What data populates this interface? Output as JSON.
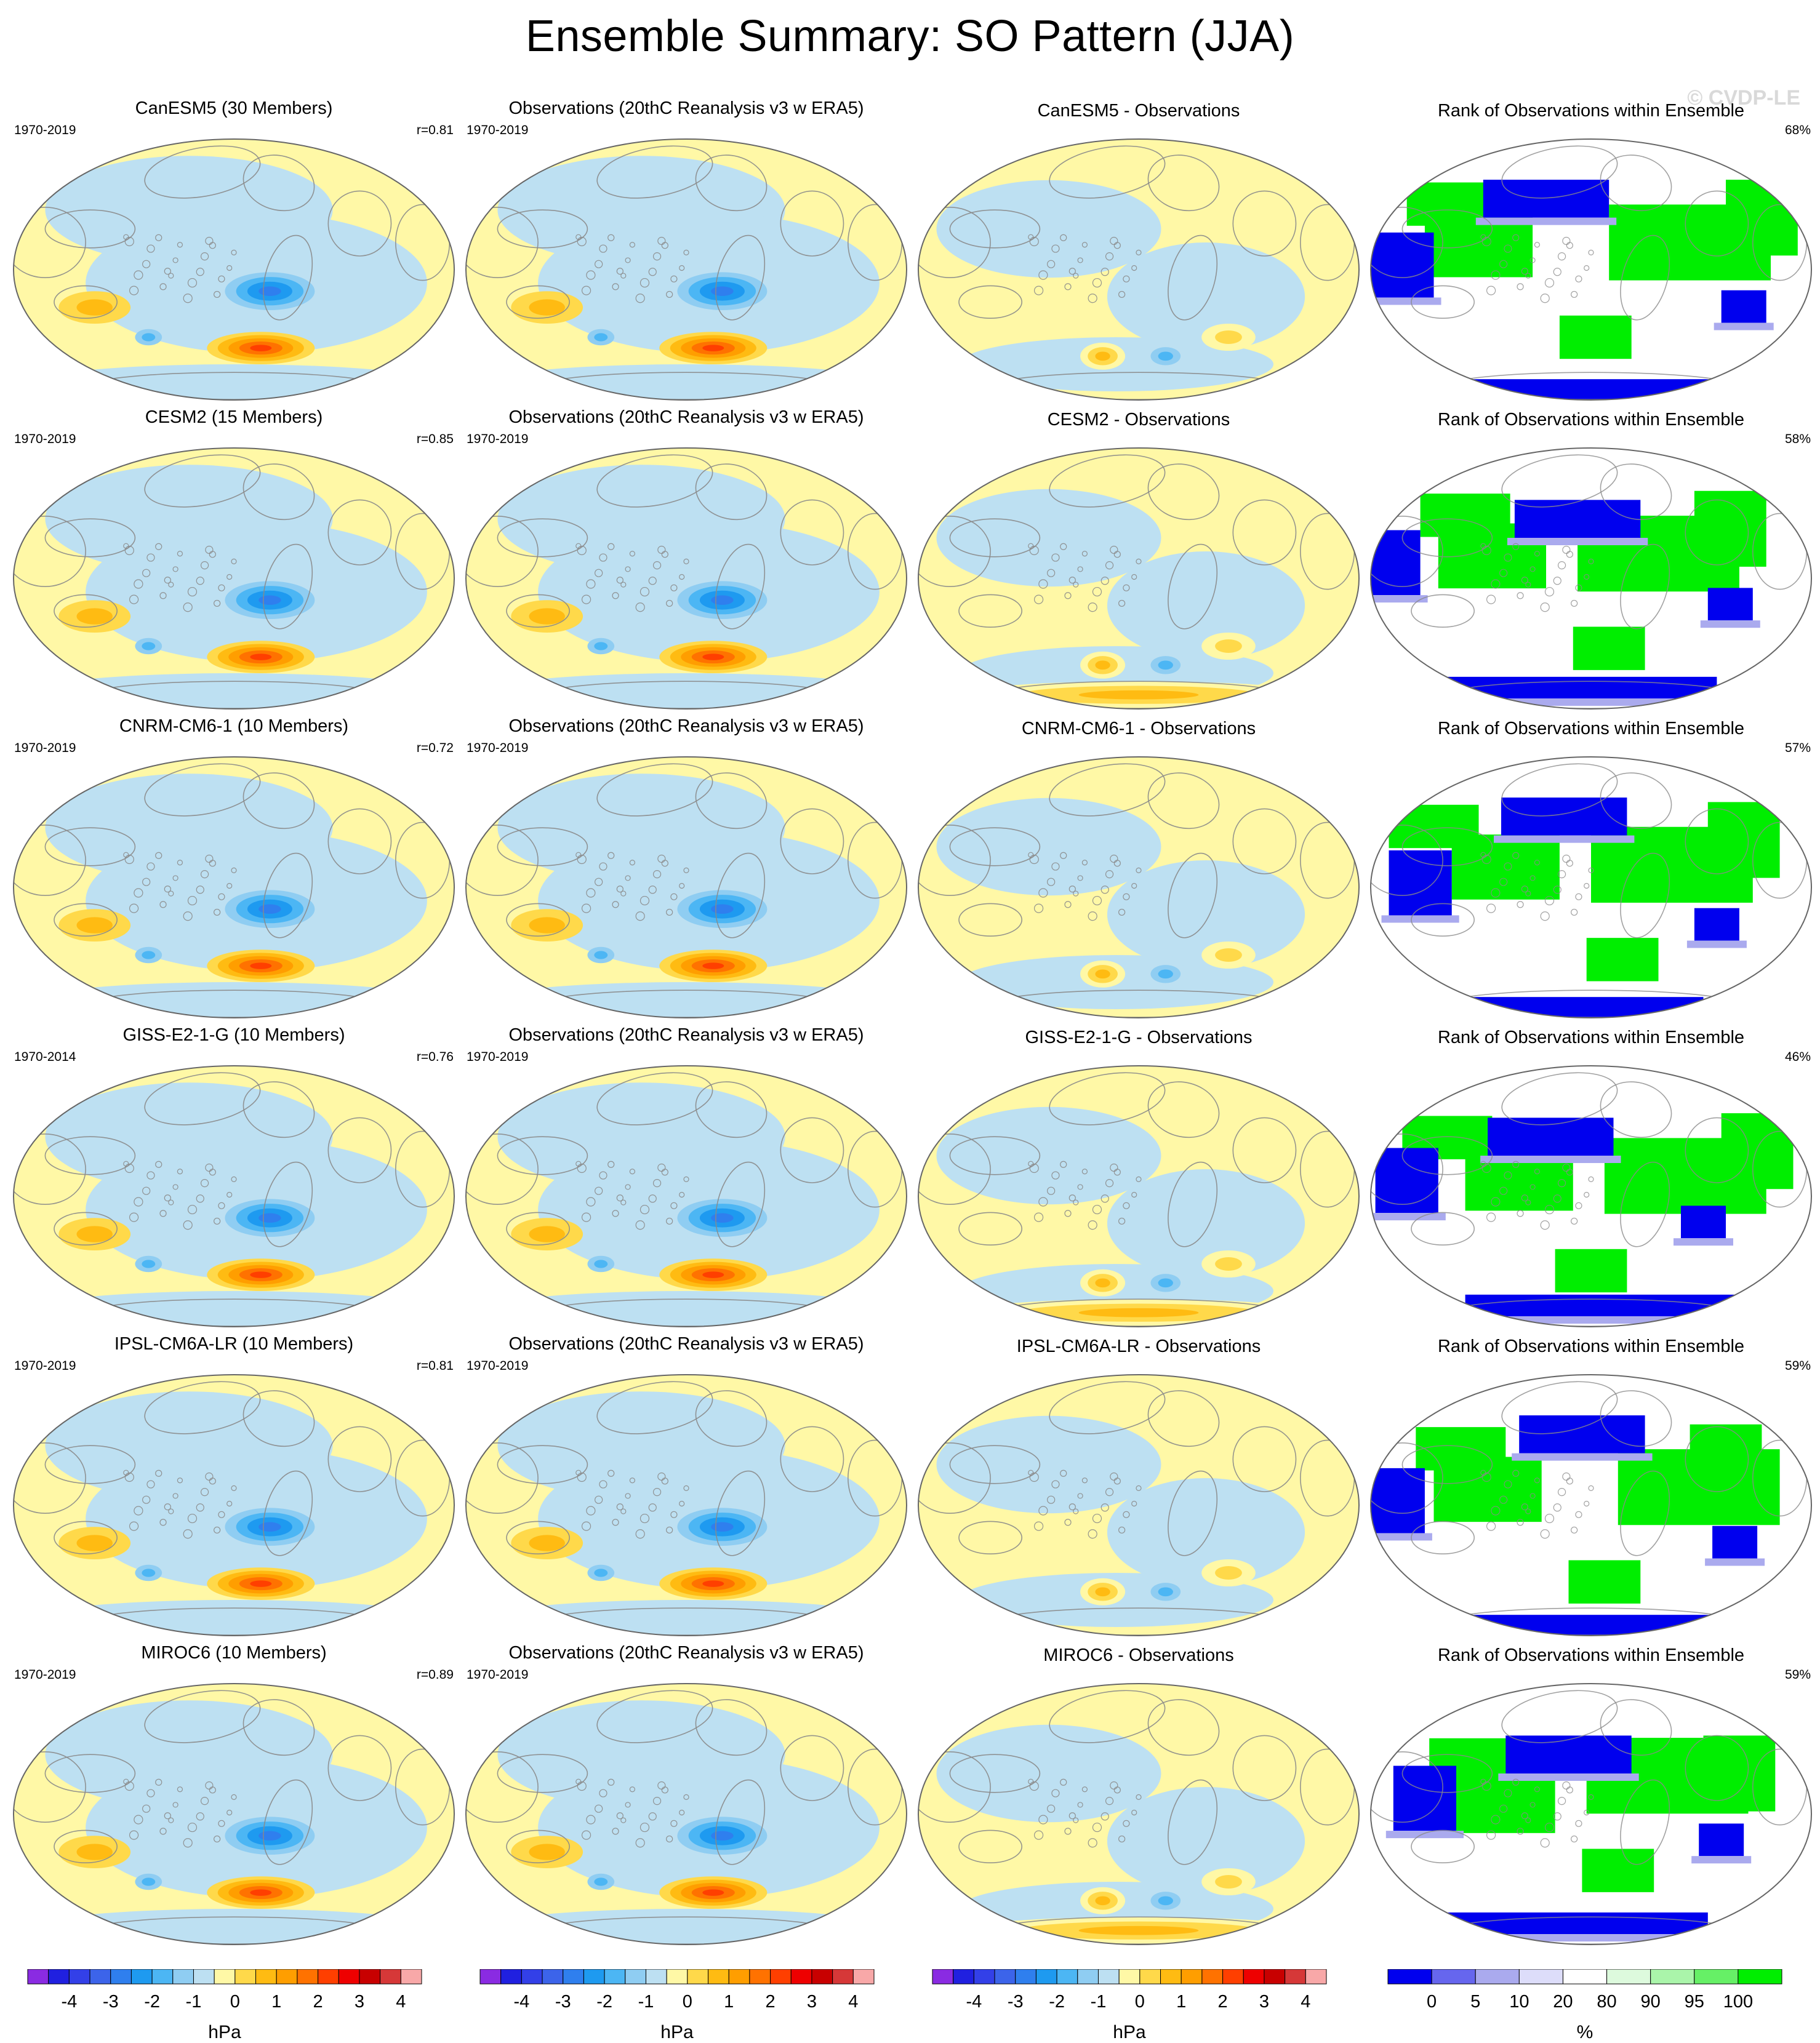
{
  "title": "Ensemble Summary: SO Pattern (JJA)",
  "watermark": "© CVDP-LE",
  "obs_title": "Observations (20thC Reanalysis v3 w ERA5)",
  "obs_years": "1970-2019",
  "rank_title": "Rank of Observations within Ensemble",
  "rows": [
    {
      "model_title": "CanESM5 (30 Members)",
      "model_years": "1970-2019",
      "corr": "r=0.81",
      "diff_title": "CanESM5 - Observations",
      "rank_pct": "68%"
    },
    {
      "model_title": "CESM2 (15 Members)",
      "model_years": "1970-2019",
      "corr": "r=0.85",
      "diff_title": "CESM2 - Observations",
      "rank_pct": "58%"
    },
    {
      "model_title": "CNRM-CM6-1 (10 Members)",
      "model_years": "1970-2019",
      "corr": "r=0.72",
      "diff_title": "CNRM-CM6-1 - Observations",
      "rank_pct": "57%"
    },
    {
      "model_title": "GISS-E2-1-G (10 Members)",
      "model_years": "1970-2014",
      "corr": "r=0.76",
      "diff_title": "GISS-E2-1-G - Observations",
      "rank_pct": "46%"
    },
    {
      "model_title": "IPSL-CM6A-LR (10 Members)",
      "model_years": "1970-2019",
      "corr": "r=0.81",
      "diff_title": "IPSL-CM6A-LR - Observations",
      "rank_pct": "59%"
    },
    {
      "model_title": "MIROC6 (10 Members)",
      "model_years": "1970-2019",
      "corr": "r=0.89",
      "diff_title": "MIROC6 - Observations",
      "rank_pct": "59%"
    }
  ],
  "colorbar_hpa": {
    "unit": "hPa",
    "ticks": [
      "-4",
      "-3",
      "-2",
      "-1",
      "0",
      "1",
      "2",
      "3",
      "4"
    ],
    "colors": [
      "#8a2be2",
      "#2020e0",
      "#3340e8",
      "#3c64ea",
      "#2f7fee",
      "#1e9af0",
      "#4cb6f4",
      "#8fcdf2",
      "#bde0f2",
      "#fff8a6",
      "#ffd94a",
      "#ffbb12",
      "#ff9e00",
      "#ff7200",
      "#ff3f00",
      "#ee0000",
      "#c80000",
      "#d63838",
      "#f8a8a8"
    ]
  },
  "colorbar_rank": {
    "unit": "%",
    "ticks": [
      "0",
      "5",
      "10",
      "20",
      "80",
      "90",
      "95",
      "100"
    ],
    "colors": [
      "#0000ee",
      "#6666ee",
      "#aaaaee",
      "#ddddfa",
      "#ffffff",
      "#ddfadd",
      "#aaf5aa",
      "#66f066",
      "#00ee00"
    ]
  },
  "palette": {
    "neg": [
      "#bde0f2",
      "#8fcdf2",
      "#4cb6f4",
      "#1e9af0",
      "#2f7fee"
    ],
    "pos": [
      "#fff8a6",
      "#ffd94a",
      "#ffbb12",
      "#ff9e00",
      "#ff7200",
      "#ff3f00"
    ],
    "rank_low": "#0000ee",
    "rank_mid": "#aaaaee",
    "rank_high": "#00ee00",
    "rank_hi_pale": "#ddfadd",
    "coast": "#8a8a8a"
  }
}
